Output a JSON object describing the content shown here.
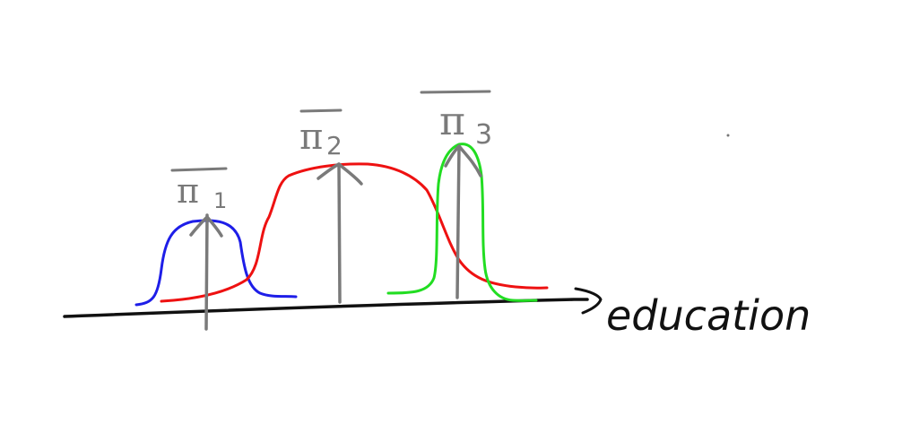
{
  "axis": {
    "label": "education",
    "color": "#111111"
  },
  "curves": [
    {
      "id": "group-1",
      "color": "#1e1ee8"
    },
    {
      "id": "group-2",
      "color": "#ee1111"
    },
    {
      "id": "group-3",
      "color": "#22dd22"
    }
  ],
  "means": [
    {
      "symbol": "π",
      "subscript": "1"
    },
    {
      "symbol": "π",
      "subscript": "2"
    },
    {
      "symbol": "π",
      "subscript": "3"
    }
  ],
  "arrow_color": "#7a7a7a"
}
